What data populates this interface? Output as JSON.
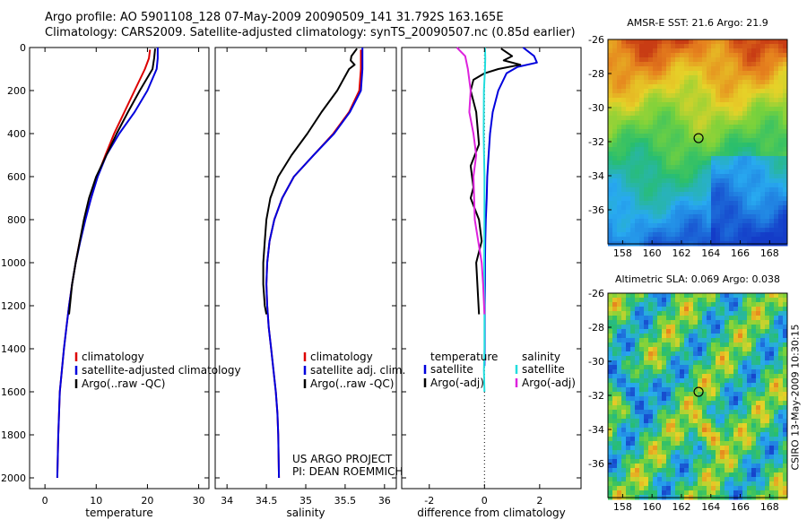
{
  "header": {
    "line1": "Argo profile: AO 5901108_128 07-May-2009 20090509_141 31.792S 163.165E",
    "line2": "Climatology: CARS2009. Satellite-adjusted climatology: synTS_20090507.nc (0.85d earlier)"
  },
  "side_stamp": "CSIRO 13-May-2009 10:30:15",
  "credit": {
    "line1": "US ARGO PROJECT",
    "line2": "PI: DEAN ROEMMICH"
  },
  "colors": {
    "climatology": "#dd0000",
    "satellite": "#0000dd",
    "argo": "#000000",
    "sat_diff": "#22dddd",
    "argo_diff": "#dd22dd"
  },
  "chart_data": [
    {
      "type": "line",
      "xlabel": "temperature",
      "xlim": [
        -3,
        32
      ],
      "xticks": [
        0,
        10,
        20,
        30
      ],
      "ylim": [
        2050,
        0
      ],
      "yticks": [
        0,
        200,
        400,
        600,
        800,
        1000,
        1200,
        1400,
        1600,
        1800,
        2000
      ],
      "legend": [
        "climatology",
        "satellite-adjusted climatology",
        "Argo(..raw -QC)"
      ],
      "legend_placement": "lower-center",
      "series": [
        {
          "name": "climatology",
          "color": "#dd0000",
          "x": [
            20.5,
            20.3,
            19.5,
            17.5,
            15.5,
            13.5,
            11.8,
            10.2,
            9.0,
            7.8,
            6.8,
            6.0,
            5.3,
            4.7,
            4.2,
            3.7,
            3.3,
            2.9,
            2.6,
            2.4
          ],
          "y": [
            10,
            50,
            100,
            200,
            300,
            400,
            500,
            600,
            700,
            800,
            900,
            1000,
            1100,
            1200,
            1300,
            1400,
            1500,
            1600,
            1800,
            2000
          ]
        },
        {
          "name": "satellite-adjusted climatology",
          "color": "#0000dd",
          "x": [
            22.0,
            22.0,
            21.8,
            20.0,
            17.5,
            14.5,
            12.0,
            10.3,
            9.0,
            7.9,
            6.9,
            6.0,
            5.3,
            4.7,
            4.2,
            3.7,
            3.3,
            2.9,
            2.6,
            2.4
          ],
          "y": [
            0,
            50,
            100,
            200,
            300,
            400,
            500,
            600,
            700,
            800,
            900,
            1000,
            1100,
            1200,
            1300,
            1400,
            1500,
            1600,
            1800,
            2000
          ]
        },
        {
          "name": "Argo(..raw -QC)",
          "color": "#000000",
          "x": [
            21.5,
            21.3,
            21.0,
            18.5,
            16.2,
            14.0,
            12.0,
            10.0,
            8.6,
            7.6,
            6.8,
            6.0,
            5.3,
            4.7
          ],
          "y": [
            5,
            50,
            100,
            200,
            300,
            400,
            500,
            600,
            700,
            800,
            900,
            1000,
            1100,
            1240
          ]
        }
      ]
    },
    {
      "type": "line",
      "xlabel": "salinity",
      "xlim": [
        33.85,
        36.15
      ],
      "xticks": [
        34,
        34.5,
        35,
        35.5,
        36
      ],
      "ylim": [
        2050,
        0
      ],
      "legend": [
        "climatology",
        "satellite adj. clim.",
        "Argo(..raw -QC)"
      ],
      "legend_placement": "lower-center",
      "series": [
        {
          "name": "climatology",
          "color": "#dd0000",
          "x": [
            35.7,
            35.7,
            35.68,
            35.55,
            35.35,
            35.1,
            34.85,
            34.7,
            34.6,
            34.54,
            34.51,
            34.5,
            34.51,
            34.53,
            34.56,
            34.59,
            34.62,
            34.64,
            34.65,
            34.66
          ],
          "y": [
            10,
            100,
            200,
            300,
            400,
            500,
            600,
            700,
            800,
            900,
            1000,
            1100,
            1200,
            1300,
            1400,
            1500,
            1600,
            1700,
            1800,
            2000
          ]
        },
        {
          "name": "satellite adj. clim.",
          "color": "#0000dd",
          "x": [
            35.72,
            35.72,
            35.7,
            35.56,
            35.36,
            35.1,
            34.85,
            34.7,
            34.6,
            34.54,
            34.51,
            34.5,
            34.51,
            34.53,
            34.56,
            34.59,
            34.62,
            34.64,
            34.65,
            34.66
          ],
          "y": [
            0,
            100,
            200,
            300,
            400,
            500,
            600,
            700,
            800,
            900,
            1000,
            1100,
            1200,
            1300,
            1400,
            1500,
            1600,
            1700,
            1800,
            2000
          ]
        },
        {
          "name": "Argo(..raw -QC)",
          "color": "#000000",
          "x": [
            35.65,
            35.58,
            35.57,
            35.62,
            35.55,
            35.4,
            35.2,
            35.02,
            34.82,
            34.65,
            34.55,
            34.5,
            34.48,
            34.46,
            34.46,
            34.48,
            34.5
          ],
          "y": [
            5,
            40,
            60,
            80,
            100,
            200,
            300,
            400,
            500,
            600,
            700,
            800,
            900,
            1000,
            1100,
            1200,
            1240
          ]
        }
      ]
    },
    {
      "type": "line",
      "xlabel": "difference from climatology",
      "xlim": [
        -3,
        3.5
      ],
      "xticks": [
        -2,
        0,
        2
      ],
      "ylim": [
        2050,
        0
      ],
      "zero_line": true,
      "legend_groups": [
        {
          "title": "temperature",
          "items": [
            "satellite",
            "Argo(-adj)"
          ]
        },
        {
          "title": "salinity",
          "items": [
            "satellite",
            "Argo(-adj)"
          ]
        }
      ],
      "legend_placement": "lower-center",
      "series": [
        {
          "name": "temperature satellite",
          "color": "#0000dd",
          "x": [
            1.4,
            1.8,
            1.9,
            1.2,
            0.8,
            0.5,
            0.3,
            0.2,
            0.15,
            0.1,
            0.08,
            0.05,
            0.03,
            0.02,
            0.02,
            0.01,
            0.01,
            0.0
          ],
          "y": [
            0,
            40,
            70,
            90,
            120,
            200,
            300,
            400,
            500,
            600,
            700,
            800,
            900,
            1000,
            1100,
            1200,
            1400,
            1480
          ]
        },
        {
          "name": "temperature Argo(-adj)",
          "color": "#000000",
          "x": [
            0.6,
            1.0,
            0.7,
            1.3,
            0.5,
            0.0,
            -0.4,
            -0.5,
            -0.3,
            -0.2,
            -0.5,
            -0.4,
            -0.5,
            -0.2,
            -0.1,
            -0.3,
            -0.2
          ],
          "y": [
            5,
            40,
            60,
            80,
            100,
            120,
            150,
            200,
            300,
            450,
            550,
            650,
            700,
            800,
            900,
            1000,
            1240
          ]
        },
        {
          "name": "salinity satellite",
          "color": "#22dddd",
          "x": [
            0.02,
            0.03,
            0.02,
            -0.02,
            -0.03,
            0.0,
            0.0,
            -0.01,
            0.0,
            0.0,
            -0.02,
            0.0
          ],
          "y": [
            0,
            50,
            100,
            200,
            400,
            600,
            800,
            1000,
            1200,
            1400,
            1500,
            1600
          ]
        },
        {
          "name": "salinity Argo(-adj)",
          "color": "#dd22dd",
          "x": [
            -1.0,
            -0.7,
            -0.6,
            -0.5,
            -0.55,
            -0.4,
            -0.3,
            -0.4,
            -0.35,
            -0.1,
            -0.05,
            0.0
          ],
          "y": [
            0,
            40,
            100,
            200,
            300,
            400,
            500,
            600,
            800,
            1000,
            1100,
            1240
          ]
        }
      ]
    },
    {
      "type": "heatmap",
      "title": "AMSR-E SST: 21.6 Argo: 21.9",
      "xlim": [
        157,
        169.2
      ],
      "ylim": [
        -38,
        -26
      ],
      "xticks": [
        158,
        160,
        162,
        164,
        166,
        168
      ],
      "xtick_labels": [
        "158",
        "160",
        "162",
        "164",
        "166",
        "168"
      ],
      "yticks": [
        -26,
        -28,
        -30,
        -32,
        -34,
        -36
      ],
      "ytick_labels": [
        "-26",
        "-28",
        "-30",
        "-32",
        "-34",
        "-36"
      ],
      "profile_marker": {
        "lon": 163.165,
        "lat": -31.792
      }
    },
    {
      "type": "heatmap",
      "title": "Altimetric SLA: 0.069 Argo: 0.038",
      "xlim": [
        157,
        169.2
      ],
      "ylim": [
        -38,
        -26
      ],
      "xticks": [
        158,
        160,
        162,
        164,
        166,
        168
      ],
      "xtick_labels": [
        "158",
        "160",
        "162",
        "164",
        "166",
        "168"
      ],
      "yticks": [
        -26,
        -28,
        -30,
        -32,
        -34,
        -36
      ],
      "ytick_labels": [
        "-26",
        "-28",
        "-30",
        "-32",
        "-34",
        "-36"
      ],
      "profile_marker": {
        "lon": 163.165,
        "lat": -31.792
      }
    }
  ]
}
